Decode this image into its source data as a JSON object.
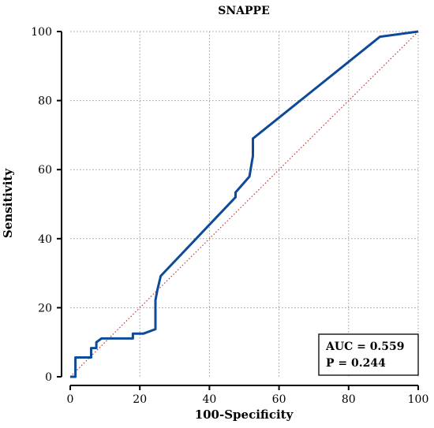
{
  "chart_data": {
    "type": "line",
    "title": "SNAPPE",
    "xlabel": "100-Specificity",
    "ylabel": "Sensitivity",
    "xlim": [
      0,
      100
    ],
    "ylim": [
      0,
      100
    ],
    "xticks": [
      0,
      20,
      40,
      60,
      80,
      100
    ],
    "yticks": [
      0,
      20,
      40,
      60,
      80,
      100
    ],
    "grid": true,
    "series": [
      {
        "color": "#0d4a9a",
        "style": "solid",
        "x": [
          0,
          1.5,
          1.5,
          6,
          6,
          7.5,
          7.5,
          9,
          18,
          18,
          21,
          24.5,
          24.5,
          25,
          26,
          47.5,
          47.5,
          51.5,
          52.5,
          52.5,
          89,
          100
        ],
        "y": [
          0,
          0,
          5.6,
          5.6,
          8.3,
          8.3,
          10,
          11.1,
          11.1,
          12.5,
          12.5,
          13.8,
          22.2,
          25,
          29.2,
          52,
          53.4,
          58,
          64,
          69,
          98.5,
          100
        ]
      },
      {
        "color": "#c0392b",
        "style": "dotted",
        "x": [
          0,
          100
        ],
        "y": [
          0,
          100
        ]
      }
    ],
    "annotations": [
      "AUC = 0.559",
      "P = 0.244"
    ]
  }
}
